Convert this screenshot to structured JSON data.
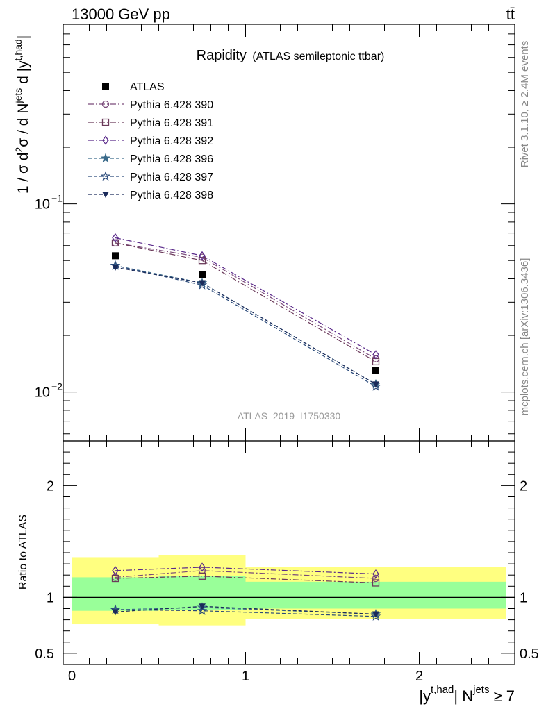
{
  "header": {
    "left": "13000 GeV pp",
    "right": "tt̄"
  },
  "side_labels": {
    "rivet": "Rivet 3.1.10, ≥ 2.4M events",
    "mcplots": "mcplots.cern.ch [arXiv:1306.3436]"
  },
  "plot_title": {
    "main": "Rapidity",
    "sub": "(ATLAS semileptonic ttbar)"
  },
  "watermark": "ATLAS_2019_I1750330",
  "colors": {
    "data": "#000000",
    "band_inner": "#99ff99",
    "band_outer": "#ffff80",
    "s390": "#7a4a7a",
    "s391": "#6b3a5a",
    "s392": "#5a2a8a",
    "s396": "#3a6a8a",
    "s397": "#2a4a7a",
    "s398": "#1a2a5a"
  },
  "chart_data": {
    "type": "scatter",
    "x_label_parts": {
      "base": "|y",
      "sup": "t,had",
      "mid": "| N",
      "sup2": "jets",
      "end": " ≥ 7"
    },
    "y_label": "1 / σ d²σ / d N^jets d |y^t,had|",
    "ratio_label": "Ratio to ATLAS",
    "x_range": [
      -0.05,
      2.55
    ],
    "x_ticks": [
      0,
      1,
      2
    ],
    "main_y_range": [
      0.0055,
      0.9
    ],
    "main_y_scale": "log",
    "main_y_ticks": [
      {
        "v": 0.1,
        "label": "10",
        "exp": "−1"
      },
      {
        "v": 0.01,
        "label": "10",
        "exp": "−2"
      }
    ],
    "ratio_y_range": [
      0.4,
      2.4
    ],
    "ratio_y_ticks": [
      {
        "v": 0.5,
        "label": "0.5"
      },
      {
        "v": 1,
        "label": "1"
      },
      {
        "v": 2,
        "label": "2"
      }
    ],
    "data": {
      "name": "ATLAS",
      "x": [
        0.25,
        0.75,
        1.75
      ],
      "xbins": [
        [
          0,
          0.5
        ],
        [
          0.5,
          1.0
        ],
        [
          1.0,
          2.5
        ]
      ],
      "y": [
        0.053,
        0.042,
        0.013
      ],
      "band_inner": [
        [
          0.88,
          1.18
        ],
        [
          0.89,
          1.19
        ],
        [
          0.9,
          1.14
        ]
      ],
      "band_outer": [
        [
          0.76,
          1.36
        ],
        [
          0.75,
          1.38
        ],
        [
          0.81,
          1.27
        ]
      ]
    },
    "series": [
      {
        "name": "Pythia 6.428 390",
        "marker": "circle",
        "dash": "dashdot",
        "colorKey": "s390",
        "y": [
          0.062,
          0.052,
          0.015
        ],
        "ratio": [
          1.18,
          1.24,
          1.17
        ]
      },
      {
        "name": "Pythia 6.428 391",
        "marker": "square",
        "dash": "dashdot",
        "colorKey": "s391",
        "y": [
          0.062,
          0.05,
          0.0145
        ],
        "ratio": [
          1.17,
          1.19,
          1.13
        ]
      },
      {
        "name": "Pythia 6.428 392",
        "marker": "diamond",
        "dash": "dashdot",
        "colorKey": "s392",
        "y": [
          0.066,
          0.053,
          0.0158
        ],
        "ratio": [
          1.24,
          1.27,
          1.21
        ]
      },
      {
        "name": "Pythia 6.428 396",
        "marker": "star",
        "dash": "dashed",
        "colorKey": "s396",
        "y": [
          0.047,
          0.038,
          0.011
        ],
        "ratio": [
          0.89,
          0.91,
          0.85
        ]
      },
      {
        "name": "Pythia 6.428 397",
        "marker": "staropen",
        "dash": "dashed",
        "colorKey": "s397",
        "y": [
          0.047,
          0.037,
          0.0107
        ],
        "ratio": [
          0.89,
          0.88,
          0.83
        ]
      },
      {
        "name": "Pythia 6.428 398",
        "marker": "triangledown",
        "dash": "dashed",
        "colorKey": "s398",
        "y": [
          0.046,
          0.038,
          0.011
        ],
        "ratio": [
          0.87,
          0.92,
          0.85
        ]
      }
    ]
  }
}
